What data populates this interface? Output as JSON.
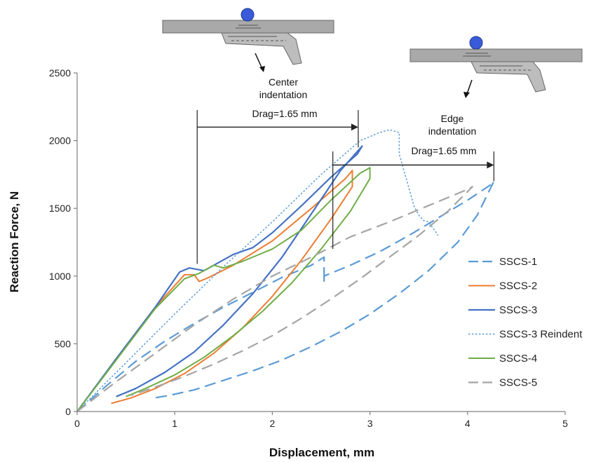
{
  "chart_data": {
    "type": "line",
    "xlabel": "Displacement, mm",
    "ylabel": "Reaction Force, N",
    "xlim": [
      0,
      5
    ],
    "ylim": [
      0,
      2500
    ],
    "xticks": [
      "0",
      "1",
      "2",
      "3",
      "4",
      "5"
    ],
    "yticks": [
      "0",
      "500",
      "1000",
      "1500",
      "2000",
      "2500"
    ],
    "grid": false,
    "legend_position": "right",
    "annotations": {
      "center_line1": "Center",
      "center_line2": "indentation",
      "edge_line1": "Edge",
      "edge_line2": "indentation",
      "drag_center": "Drag=1.65 mm",
      "drag_edge": "Drag=1.65 mm",
      "drag_center_x": [
        1.23,
        2.88
      ],
      "drag_center_y": 2100,
      "drag_edge_x": [
        2.62,
        4.27
      ],
      "drag_edge_y": 1820
    },
    "series": [
      {
        "name": "SSCS-1",
        "color": "#5b9bd5",
        "style": "longdash",
        "width": 2.2,
        "x": [
          0.0,
          0.3,
          0.6,
          0.9,
          1.2,
          1.5,
          1.8,
          2.1,
          2.4,
          2.53,
          2.53,
          2.53,
          2.8,
          3.1,
          3.4,
          3.7,
          4.0,
          4.25,
          4.27,
          4.1,
          3.9,
          3.6,
          3.3,
          3.0,
          2.7,
          2.4,
          2.1,
          1.8,
          1.5,
          1.2,
          0.95,
          0.75
        ],
        "y": [
          0,
          190,
          370,
          520,
          650,
          770,
          880,
          990,
          1080,
          1140,
          950,
          1000,
          1080,
          1180,
          1300,
          1430,
          1560,
          1680,
          1700,
          1450,
          1250,
          1040,
          870,
          720,
          590,
          480,
          380,
          300,
          230,
          160,
          120,
          95
        ]
      },
      {
        "name": "SSCS-2",
        "color": "#ed7d31",
        "style": "solid",
        "width": 2.0,
        "x": [
          0.0,
          0.4,
          0.8,
          1.1,
          1.2,
          1.25,
          1.35,
          1.6,
          2.0,
          2.4,
          2.75,
          2.82,
          2.82,
          2.6,
          2.3,
          2.0,
          1.7,
          1.4,
          1.1,
          0.8,
          0.55,
          0.35
        ],
        "y": [
          0,
          390,
          770,
          1010,
          1010,
          960,
          990,
          1080,
          1260,
          1500,
          1720,
          1780,
          1660,
          1420,
          1120,
          850,
          620,
          430,
          280,
          170,
          100,
          60
        ]
      },
      {
        "name": "SSCS-3",
        "color": "#4472c4",
        "style": "solid",
        "width": 2.2,
        "x": [
          0.0,
          0.4,
          0.8,
          1.05,
          1.15,
          1.3,
          1.6,
          1.8,
          2.0,
          2.3,
          2.6,
          2.87,
          2.92,
          2.7,
          2.4,
          2.1,
          1.8,
          1.5,
          1.2,
          0.9,
          0.6,
          0.4
        ],
        "y": [
          0,
          390,
          770,
          1030,
          1060,
          1040,
          1160,
          1210,
          1320,
          1520,
          1730,
          1900,
          1960,
          1780,
          1460,
          1140,
          870,
          640,
          440,
          290,
          170,
          110
        ]
      },
      {
        "name": "SSCS-3 Reindent",
        "color": "#5b9bd5",
        "style": "dotted",
        "width": 1.5,
        "x": [
          0.0,
          0.5,
          1.0,
          1.5,
          2.0,
          2.5,
          2.9,
          3.1,
          3.2,
          3.3,
          3.3,
          3.38,
          3.45,
          3.5,
          3.55,
          3.6,
          3.7
        ],
        "y": [
          0,
          360,
          720,
          1070,
          1400,
          1750,
          2000,
          2060,
          2080,
          2060,
          1900,
          1700,
          1520,
          1450,
          1410,
          1400,
          1300
        ]
      },
      {
        "name": "SSCS-4",
        "color": "#70ad47",
        "style": "solid",
        "width": 2.0,
        "x": [
          0.0,
          0.4,
          0.8,
          1.1,
          1.25,
          1.4,
          1.5,
          1.7,
          2.0,
          2.3,
          2.6,
          2.9,
          3.0,
          3.0,
          2.8,
          2.5,
          2.2,
          1.9,
          1.6,
          1.3,
          1.0,
          0.7,
          0.5
        ],
        "y": [
          0,
          380,
          760,
          980,
          1020,
          1080,
          1060,
          1110,
          1200,
          1340,
          1560,
          1760,
          1800,
          1720,
          1480,
          1200,
          950,
          740,
          560,
          400,
          270,
          170,
          110
        ]
      },
      {
        "name": "SSCS-5",
        "color": "#a5a5a5",
        "style": "longdash",
        "width": 2.2,
        "x": [
          0.0,
          0.4,
          0.8,
          1.2,
          1.6,
          2.0,
          2.4,
          2.8,
          3.2,
          3.6,
          4.0,
          4.05,
          3.8,
          3.5,
          3.2,
          2.9,
          2.6,
          2.3,
          2.0,
          1.7,
          1.4,
          1.1,
          0.8,
          0.55
        ],
        "y": [
          0,
          220,
          430,
          640,
          830,
          1000,
          1140,
          1290,
          1400,
          1520,
          1640,
          1660,
          1480,
          1300,
          1140,
          980,
          830,
          690,
          560,
          450,
          350,
          260,
          180,
          120
        ]
      }
    ]
  }
}
